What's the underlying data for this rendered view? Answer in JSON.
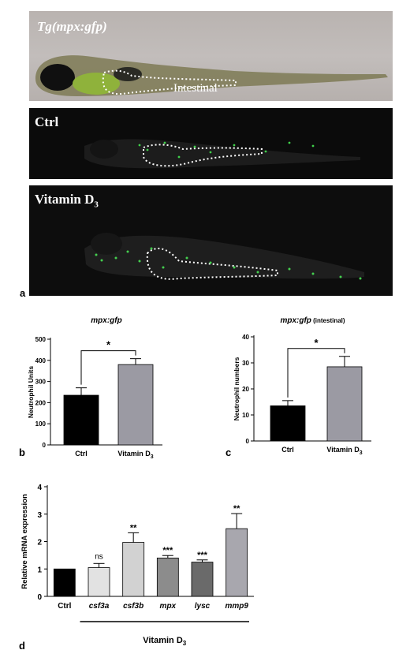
{
  "panel_a": {
    "letter": "a",
    "images": [
      {
        "label": "Tg(mpx:gfp)",
        "region_label": "Intestinal"
      },
      {
        "label": "Ctrl"
      },
      {
        "label": "Vitamin D",
        "label_subscript": "3"
      }
    ]
  },
  "colors": {
    "ctrl_bar": "#000000",
    "vitd_bar": "#9b9aa3",
    "d_bars": [
      "#000000",
      "#e2e2e2",
      "#d2d2d2",
      "#8c8c8c",
      "#6a6a6a",
      "#a8a7ae"
    ]
  },
  "chart_data": [
    {
      "panel": "b",
      "type": "bar",
      "title": "mpx:gfp",
      "ylabel": "Neutrophil Units",
      "categories": [
        "Ctrl",
        "Vitamin D3"
      ],
      "category_display": [
        {
          "main": "Ctrl",
          "sub": ""
        },
        {
          "main": "Vitamin D",
          "sub": "3"
        }
      ],
      "values": [
        235,
        380
      ],
      "errors": [
        35,
        28
      ],
      "ylim": [
        0,
        500
      ],
      "yticks": [
        "0",
        "100",
        "200",
        "300",
        "400",
        "500"
      ],
      "significance": "*"
    },
    {
      "panel": "c",
      "type": "bar",
      "title": "mpx:gfp",
      "title_suffix": "(intestinal)",
      "ylabel": "Neutrophil numbers",
      "categories": [
        "Ctrl",
        "Vitamin D3"
      ],
      "category_display": [
        {
          "main": "Ctrl",
          "sub": ""
        },
        {
          "main": "Vitamin D",
          "sub": "3"
        }
      ],
      "values": [
        13.5,
        28.5
      ],
      "errors": [
        2,
        4
      ],
      "ylim": [
        0,
        40
      ],
      "yticks": [
        "0",
        "10",
        "20",
        "30",
        "40"
      ],
      "significance": "*"
    },
    {
      "panel": "d",
      "type": "bar",
      "ylabel": "Relative mRNA expression",
      "categories": [
        "Ctrl",
        "csf3a",
        "csf3b",
        "mpx",
        "lysc",
        "mmp9"
      ],
      "values": [
        1.0,
        1.05,
        1.97,
        1.4,
        1.25,
        2.47
      ],
      "errors": [
        0,
        0.15,
        0.35,
        0.09,
        0.08,
        0.55
      ],
      "annotations": [
        "",
        "ns",
        "**",
        "***",
        "***",
        "**"
      ],
      "ylim": [
        0,
        4
      ],
      "yticks": [
        "0",
        "1",
        "2",
        "3",
        "4"
      ],
      "group_label": "Vitamin D",
      "group_label_subscript": "3"
    }
  ],
  "letters": {
    "b": "b",
    "c": "c",
    "d": "d"
  }
}
